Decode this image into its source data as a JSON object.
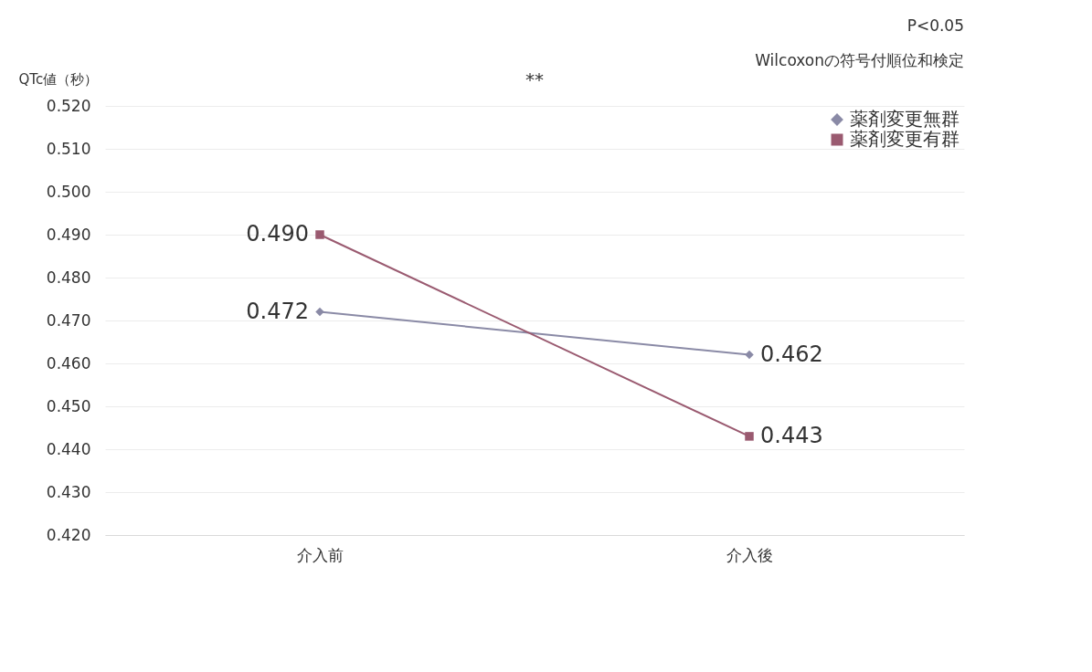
{
  "chart_data": {
    "type": "line",
    "ylabel": "QTc値（秒）",
    "categories": [
      "介入前",
      "介入後"
    ],
    "series": [
      {
        "name": "薬剤変更無群",
        "color": "#8a8aa6",
        "values": [
          0.472,
          0.462
        ],
        "value_labels": [
          "0.472",
          "0.462"
        ],
        "marker": "diamond"
      },
      {
        "name": "薬剤変更有群",
        "color": "#9a5a70",
        "values": [
          0.49,
          0.443
        ],
        "value_labels": [
          "0.490",
          "0.443"
        ],
        "marker": "square"
      }
    ],
    "ylim": [
      0.42,
      0.52
    ],
    "yticks": [
      {
        "value": 0.42,
        "label": "0.420"
      },
      {
        "value": 0.43,
        "label": "0.430"
      },
      {
        "value": 0.44,
        "label": "0.440"
      },
      {
        "value": 0.45,
        "label": "0.450"
      },
      {
        "value": 0.46,
        "label": "0.460"
      },
      {
        "value": 0.47,
        "label": "0.470"
      },
      {
        "value": 0.48,
        "label": "0.480"
      },
      {
        "value": 0.49,
        "label": "0.490"
      },
      {
        "value": 0.5,
        "label": "0.500"
      },
      {
        "value": 0.51,
        "label": "0.510"
      },
      {
        "value": 0.52,
        "label": "0.520"
      }
    ],
    "grid": "y",
    "legend": "top right",
    "annotations": [
      "P<0.05",
      "Wilcoxonの符号付順位和検定",
      "**"
    ]
  }
}
